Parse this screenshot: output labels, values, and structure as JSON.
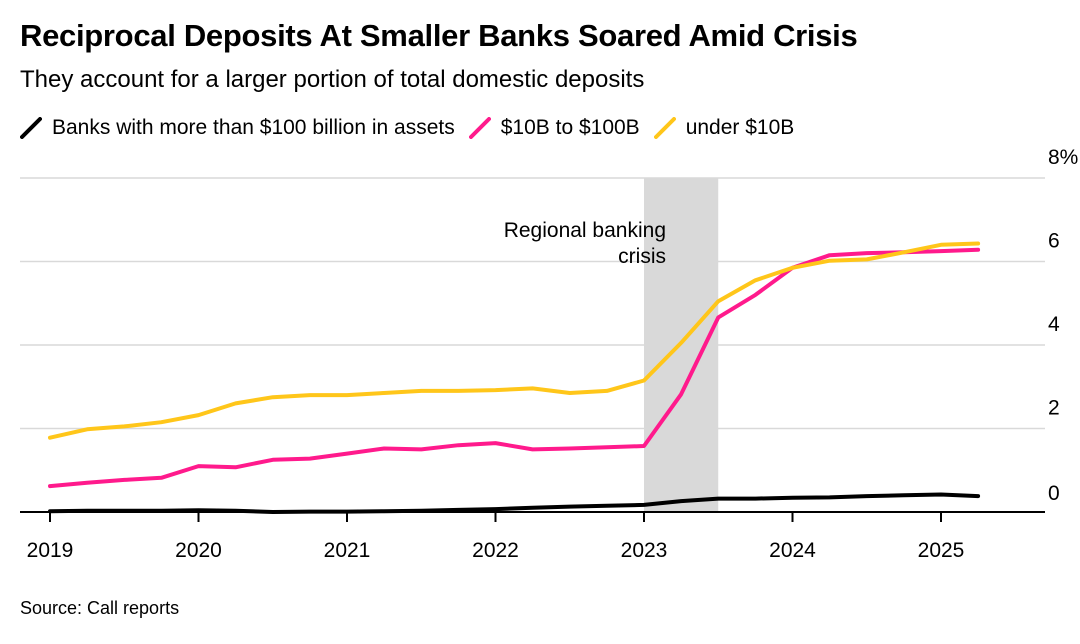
{
  "title": "Reciprocal Deposits At Smaller Banks Soared Amid Crisis",
  "subtitle": "They account for a larger portion of total domestic deposits",
  "source": "Source: Call reports",
  "colors": {
    "large": "#000000",
    "mid": "#ff1a8c",
    "small": "#ffc61a",
    "grid": "#d9d9d9",
    "shade": "#d9d9d9"
  },
  "chart_data": {
    "type": "line",
    "ylim": [
      0,
      8
    ],
    "yticks": [
      0,
      2,
      4,
      6,
      8
    ],
    "ytick_labels": [
      "0",
      "2",
      "4",
      "6",
      "8%"
    ],
    "xlim": [
      2019,
      2025.63
    ],
    "xticks": [
      2019,
      2020,
      2021,
      2022,
      2023,
      2024,
      2025
    ],
    "xtick_labels": [
      "2019",
      "2020",
      "2021",
      "2022",
      "2023",
      "2024",
      "2025"
    ],
    "annotation": {
      "lines": [
        "Regional banking",
        "crisis"
      ],
      "x_start": 2023.0,
      "x_end": 2023.5
    },
    "series": [
      {
        "key": "large",
        "name": "Banks with more than $100 billion in assets",
        "x": [
          2019,
          2019.25,
          2019.5,
          2019.75,
          2020,
          2020.25,
          2020.5,
          2020.75,
          2021,
          2021.25,
          2021.5,
          2021.75,
          2022,
          2022.25,
          2022.5,
          2022.75,
          2023,
          2023.25,
          2023.5,
          2023.75,
          2024,
          2024.25,
          2024.5,
          2024.75,
          2025,
          2025.25
        ],
        "values": [
          0.02,
          0.03,
          0.03,
          0.03,
          0.04,
          0.03,
          0.0,
          0.01,
          0.01,
          0.02,
          0.03,
          0.05,
          0.07,
          0.1,
          0.13,
          0.15,
          0.17,
          0.26,
          0.32,
          0.32,
          0.34,
          0.35,
          0.38,
          0.4,
          0.42,
          0.38
        ]
      },
      {
        "key": "mid",
        "name": "$10B to $100B",
        "x": [
          2019,
          2019.25,
          2019.5,
          2019.75,
          2020,
          2020.25,
          2020.5,
          2020.75,
          2021,
          2021.25,
          2021.5,
          2021.75,
          2022,
          2022.25,
          2022.5,
          2022.75,
          2023,
          2023.25,
          2023.5,
          2023.75,
          2024,
          2024.25,
          2024.5,
          2024.75,
          2025,
          2025.25
        ],
        "values": [
          0.62,
          0.7,
          0.77,
          0.82,
          1.1,
          1.07,
          1.25,
          1.28,
          1.4,
          1.52,
          1.5,
          1.6,
          1.65,
          1.5,
          1.52,
          1.55,
          1.58,
          2.82,
          4.66,
          5.2,
          5.85,
          6.15,
          6.2,
          6.22,
          6.25,
          6.28
        ]
      },
      {
        "key": "small",
        "name": "under $10B",
        "x": [
          2019,
          2019.25,
          2019.5,
          2019.75,
          2020,
          2020.25,
          2020.5,
          2020.75,
          2021,
          2021.25,
          2021.5,
          2021.75,
          2022,
          2022.25,
          2022.5,
          2022.75,
          2023,
          2023.25,
          2023.5,
          2023.75,
          2024,
          2024.25,
          2024.5,
          2024.75,
          2025,
          2025.25
        ],
        "values": [
          1.78,
          1.98,
          2.05,
          2.15,
          2.32,
          2.6,
          2.75,
          2.8,
          2.8,
          2.85,
          2.9,
          2.9,
          2.92,
          2.96,
          2.85,
          2.9,
          3.15,
          4.05,
          5.05,
          5.55,
          5.85,
          6.02,
          6.05,
          6.22,
          6.4,
          6.43
        ]
      }
    ]
  }
}
